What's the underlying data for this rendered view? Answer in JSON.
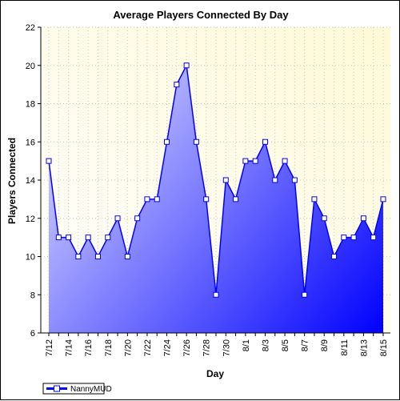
{
  "chart_data": {
    "type": "area",
    "title": "Average Players Connected By Day",
    "xlabel": "Day",
    "ylabel": "Players Connected",
    "ylim": [
      6,
      22
    ],
    "yticks": [
      6,
      8,
      10,
      12,
      14,
      16,
      18,
      20,
      22
    ],
    "x": [
      "7/12",
      "7/13",
      "7/14",
      "7/15",
      "7/16",
      "7/17",
      "7/18",
      "7/19",
      "7/20",
      "7/21",
      "7/22",
      "7/23",
      "7/24",
      "7/25",
      "7/26",
      "7/27",
      "7/28",
      "7/29",
      "7/30",
      "7/31",
      "8/1",
      "8/2",
      "8/3",
      "8/4",
      "8/5",
      "8/6",
      "8/7",
      "8/8",
      "8/9",
      "8/10",
      "8/11",
      "8/12",
      "8/13",
      "8/14",
      "8/15"
    ],
    "xticks": [
      "7/12",
      "7/14",
      "7/16",
      "7/18",
      "7/20",
      "7/22",
      "7/24",
      "7/26",
      "7/28",
      "7/30",
      "8/1",
      "8/3",
      "8/5",
      "8/7",
      "8/9",
      "8/11",
      "8/13",
      "8/15"
    ],
    "series": [
      {
        "name": "NannyMUD",
        "values": [
          15,
          11,
          11,
          10,
          11,
          10,
          11,
          12,
          10,
          12,
          13,
          13,
          16,
          19,
          20,
          16,
          13,
          8,
          14,
          13,
          15,
          15,
          16,
          14,
          15,
          14,
          8,
          13,
          12,
          10,
          11,
          11,
          12,
          11,
          13
        ]
      }
    ],
    "grid": true,
    "legend_position": "bottom-left",
    "colors": {
      "line": "#0000ff",
      "fill_light": "#c8c8ff",
      "fill_dark": "#0000ff",
      "plot_background_top": "#fff9d6",
      "plot_background_bottom": "#ffffff",
      "grid": "#c8c8b4"
    }
  }
}
